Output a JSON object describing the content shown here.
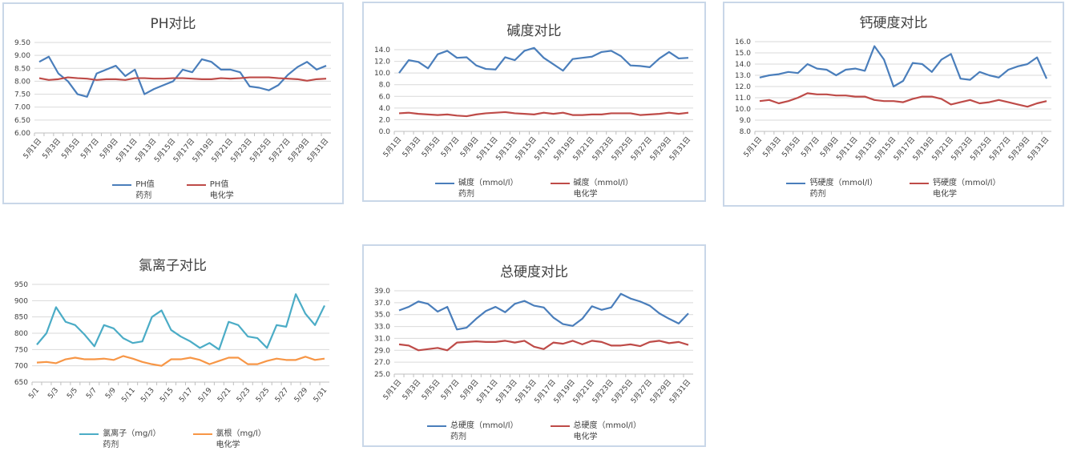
{
  "chart_data": [
    {
      "type": "line",
      "title": "PH对比",
      "categories": [
        "5月1日",
        null,
        "5月3日",
        null,
        "5月5日",
        null,
        "5月7日",
        null,
        "5月9日",
        null,
        "5月11日",
        null,
        "5月13日",
        null,
        "5月15日",
        null,
        "5月17日",
        null,
        "5月19日",
        null,
        "5月21日",
        null,
        "5月23日",
        null,
        "5月25日",
        null,
        "5月27日",
        null,
        "5月29日",
        null,
        "5月31日"
      ],
      "series": [
        {
          "name": "PH值\n药剂",
          "color": "#4a7ebb",
          "values": [
            8.75,
            8.95,
            8.3,
            8.0,
            7.5,
            7.4,
            8.3,
            8.45,
            8.6,
            8.2,
            8.45,
            7.5,
            7.7,
            7.85,
            8.0,
            8.45,
            8.35,
            8.85,
            8.75,
            8.45,
            8.45,
            8.35,
            7.8,
            7.75,
            7.65,
            7.85,
            8.25,
            8.55,
            8.75,
            8.45,
            8.6
          ]
        },
        {
          "name": "PH值\n电化学",
          "color": "#be4b48",
          "values": [
            8.12,
            8.05,
            8.08,
            8.15,
            8.12,
            8.1,
            8.05,
            8.08,
            8.08,
            8.05,
            8.12,
            8.12,
            8.1,
            8.1,
            8.12,
            8.12,
            8.1,
            8.08,
            8.08,
            8.12,
            8.1,
            8.12,
            8.15,
            8.15,
            8.15,
            8.12,
            8.1,
            8.08,
            8.02,
            8.08,
            8.1
          ]
        }
      ],
      "ylim": [
        6,
        9.5
      ],
      "yticks": [
        {
          "value": 6,
          "label": "6.00"
        },
        {
          "value": 6.5,
          "label": "6.50"
        },
        {
          "value": 7,
          "label": "7.00"
        },
        {
          "value": 7.5,
          "label": "7.50"
        },
        {
          "value": 8,
          "label": "8.00"
        },
        {
          "value": 8.5,
          "label": "8.50"
        },
        {
          "value": 9,
          "label": "9.00"
        },
        {
          "value": 9.5,
          "label": "9.50"
        }
      ],
      "grid": true
    },
    {
      "type": "line",
      "title": "碱度对比",
      "categories": [
        "5月1日",
        null,
        "5月3日",
        null,
        "5月5日",
        null,
        "5月7日",
        null,
        "5月9日",
        null,
        "5月11日",
        null,
        "5月13日",
        null,
        "5月15日",
        null,
        "5月17日",
        null,
        "5月19日",
        null,
        "5月21日",
        null,
        "5月23日",
        null,
        "5月25日",
        null,
        "5月27日",
        null,
        "5月29日",
        null,
        "5月31日"
      ],
      "series": [
        {
          "name": "碱度（mmol/l）\n药剂",
          "color": "#4a7ebb",
          "values": [
            10.0,
            12.2,
            11.9,
            10.8,
            13.2,
            13.8,
            12.6,
            12.7,
            11.3,
            10.7,
            10.6,
            12.7,
            12.2,
            13.8,
            14.3,
            12.6,
            11.5,
            10.4,
            12.4,
            12.6,
            12.8,
            13.6,
            13.8,
            12.9,
            11.3,
            11.2,
            11.0,
            12.5,
            13.6,
            12.5,
            12.6
          ]
        },
        {
          "name": "碱度（mmol/l）\n电化学",
          "color": "#be4b48",
          "values": [
            3.1,
            3.2,
            3.0,
            2.9,
            2.8,
            2.9,
            2.7,
            2.6,
            2.9,
            3.1,
            3.2,
            3.3,
            3.1,
            3.0,
            2.9,
            3.2,
            3.0,
            3.2,
            2.8,
            2.8,
            2.9,
            2.9,
            3.1,
            3.1,
            3.1,
            2.8,
            2.9,
            3.0,
            3.2,
            3.0,
            3.2
          ]
        }
      ],
      "ylim": [
        0,
        14
      ],
      "yticks": [
        {
          "value": 0,
          "label": "0.0"
        },
        {
          "value": 2,
          "label": "2.0"
        },
        {
          "value": 4,
          "label": "4.0"
        },
        {
          "value": 6,
          "label": "6.0"
        },
        {
          "value": 8,
          "label": "8.0"
        },
        {
          "value": 10,
          "label": "10.0"
        },
        {
          "value": 12,
          "label": "12.0"
        },
        {
          "value": 14,
          "label": "14.0"
        }
      ],
      "grid": true
    },
    {
      "type": "line",
      "title": "钙硬度对比",
      "categories": [
        "5月1日",
        null,
        "5月3日",
        null,
        "5月5日",
        null,
        "5月7日",
        null,
        "5月9日",
        null,
        "5月11日",
        null,
        "5月13日",
        null,
        "5月15日",
        null,
        "5月17日",
        null,
        "5月19日",
        null,
        "5月21日",
        null,
        "5月23日",
        null,
        "5月25日",
        null,
        "5月27日",
        null,
        "5月29日",
        null,
        "5月31日"
      ],
      "series": [
        {
          "name": "钙硬度（mmol/l）\n药剂",
          "color": "#4a7ebb",
          "values": [
            12.8,
            13.0,
            13.1,
            13.3,
            13.2,
            14.0,
            13.6,
            13.5,
            13.0,
            13.5,
            13.6,
            13.4,
            15.6,
            14.4,
            12.0,
            12.5,
            14.1,
            14.0,
            13.3,
            14.4,
            14.9,
            12.7,
            12.6,
            13.3,
            13.0,
            12.8,
            13.5,
            13.8,
            14.0,
            14.6,
            12.7
          ]
        },
        {
          "name": "钙硬度（mmol/l）\n电化学",
          "color": "#be4b48",
          "values": [
            10.7,
            10.8,
            10.5,
            10.7,
            11.0,
            11.4,
            11.3,
            11.3,
            11.2,
            11.2,
            11.1,
            11.1,
            10.8,
            10.7,
            10.7,
            10.6,
            10.9,
            11.1,
            11.1,
            10.9,
            10.4,
            10.6,
            10.8,
            10.5,
            10.6,
            10.8,
            10.6,
            10.4,
            10.2,
            10.5,
            10.7
          ]
        }
      ],
      "ylim": [
        8,
        16
      ],
      "yticks": [
        {
          "value": 8,
          "label": "8.0"
        },
        {
          "value": 9,
          "label": "9.0"
        },
        {
          "value": 10,
          "label": "10.0"
        },
        {
          "value": 11,
          "label": "11.0"
        },
        {
          "value": 12,
          "label": "12.0"
        },
        {
          "value": 13,
          "label": "13.0"
        },
        {
          "value": 14,
          "label": "14.0"
        },
        {
          "value": 15,
          "label": "15.0"
        },
        {
          "value": 16,
          "label": "16.0"
        }
      ],
      "grid": true
    },
    {
      "type": "line",
      "title": "氯离子对比",
      "categories": [
        "5/1",
        null,
        "5/3",
        null,
        "5/5",
        null,
        "5/7",
        null,
        "5/9",
        null,
        "5/11",
        null,
        "5/13",
        null,
        "5/15",
        null,
        "5/17",
        null,
        "5/19",
        null,
        "5/21",
        null,
        "5/23",
        null,
        "5/25",
        null,
        "5/27",
        null,
        "5/29",
        null,
        "5/31"
      ],
      "series": [
        {
          "name": "氯离子（mg/l）\n药剂",
          "color": "#4bacc6",
          "values": [
            765,
            800,
            880,
            835,
            825,
            795,
            760,
            825,
            815,
            785,
            770,
            775,
            850,
            870,
            810,
            790,
            775,
            755,
            770,
            750,
            835,
            825,
            790,
            785,
            755,
            825,
            820,
            920,
            860,
            825,
            885
          ]
        },
        {
          "name": "氯根（mg/l）\n电化学",
          "color": "#f79646",
          "values": [
            710,
            712,
            708,
            720,
            725,
            720,
            720,
            722,
            718,
            730,
            722,
            712,
            705,
            700,
            720,
            720,
            725,
            718,
            705,
            715,
            725,
            725,
            705,
            705,
            715,
            722,
            718,
            718,
            728,
            718,
            722
          ]
        }
      ],
      "ylim": [
        650,
        950
      ],
      "yticks": [
        650,
        700,
        750,
        800,
        850,
        900,
        950
      ],
      "grid": true
    },
    {
      "type": "line",
      "title": "总硬度对比",
      "categories": [
        "5月1日",
        null,
        "5月3日",
        null,
        "5月5日",
        null,
        "5月7日",
        null,
        "5月9日",
        null,
        "5月11日",
        null,
        "5月13日",
        null,
        "5月15日",
        null,
        "5月17日",
        null,
        "5月19日",
        null,
        "5月21日",
        null,
        "5月23日",
        null,
        "5月25日",
        null,
        "5月27日",
        null,
        "5月29日",
        null,
        "5月31日"
      ],
      "series": [
        {
          "name": "总硬度（mmol/l）\n药剂",
          "color": "#4a7ebb",
          "values": [
            35.7,
            36.3,
            37.2,
            36.8,
            35.5,
            36.3,
            32.5,
            32.8,
            34.3,
            35.6,
            36.3,
            35.4,
            36.8,
            37.3,
            36.5,
            36.2,
            34.5,
            33.4,
            33.1,
            34.3,
            36.4,
            35.8,
            36.2,
            38.5,
            37.7,
            37.2,
            36.5,
            35.2,
            34.3,
            33.5,
            35.2
          ]
        },
        {
          "name": "总硬度（mmol/l）\n电化学",
          "color": "#be4b48",
          "values": [
            30.0,
            29.8,
            29.0,
            29.2,
            29.4,
            29.0,
            30.3,
            30.4,
            30.5,
            30.4,
            30.4,
            30.6,
            30.3,
            30.6,
            29.6,
            29.2,
            30.3,
            30.1,
            30.6,
            30.0,
            30.6,
            30.4,
            29.8,
            29.8,
            30.0,
            29.7,
            30.4,
            30.6,
            30.2,
            30.4,
            29.9
          ]
        }
      ],
      "ylim": [
        25,
        39
      ],
      "yticks": [
        {
          "value": 25,
          "label": "25.0"
        },
        {
          "value": 27,
          "label": "27.0"
        },
        {
          "value": 29,
          "label": "29.0"
        },
        {
          "value": 31,
          "label": "31.0"
        },
        {
          "value": 33,
          "label": "33.0"
        },
        {
          "value": 35,
          "label": "35.0"
        },
        {
          "value": 37,
          "label": "37.0"
        },
        {
          "value": 39,
          "label": "39.0"
        }
      ],
      "grid": true
    }
  ]
}
